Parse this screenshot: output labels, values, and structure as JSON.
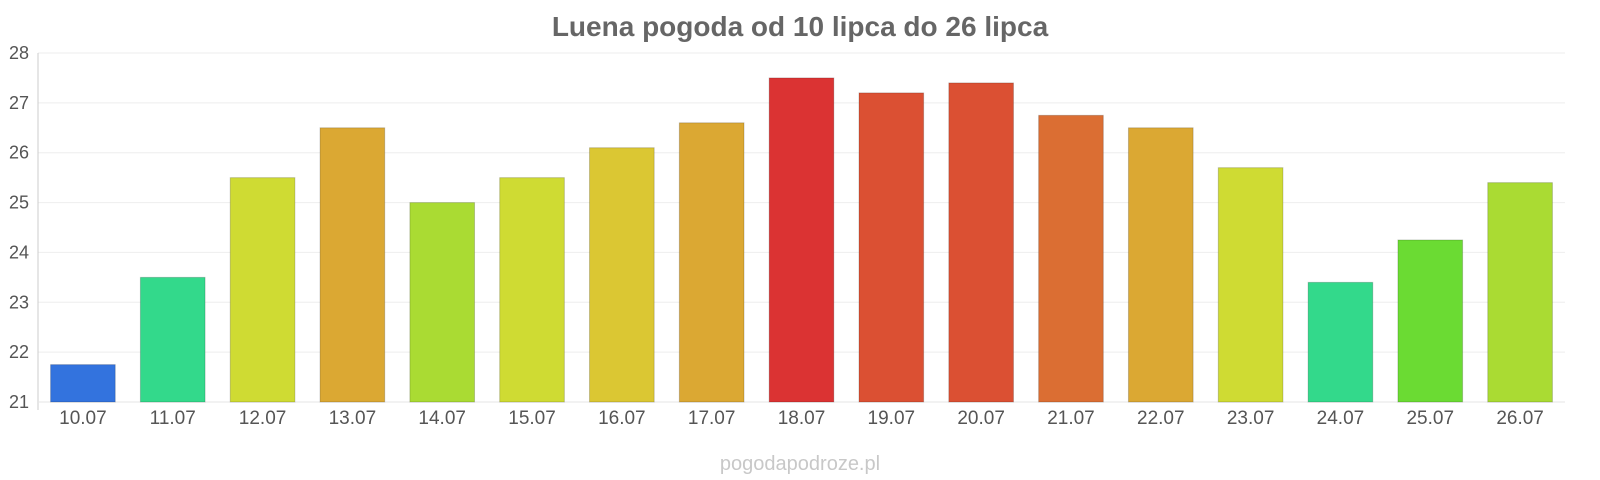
{
  "chart_data": {
    "type": "bar",
    "title": "Luena pogoda od 10 lipca do 26 lipca",
    "xlabel": "",
    "ylabel": "",
    "ylim": [
      21,
      28
    ],
    "yticks": [
      21,
      22,
      23,
      24,
      25,
      26,
      27,
      28
    ],
    "grid": true,
    "legend": "none",
    "categories": [
      "10.07",
      "11.07",
      "12.07",
      "13.07",
      "14.07",
      "15.07",
      "16.07",
      "17.07",
      "18.07",
      "19.07",
      "20.07",
      "21.07",
      "22.07",
      "23.07",
      "24.07",
      "25.07",
      "26.07"
    ],
    "values": [
      21.75,
      23.5,
      25.5,
      26.5,
      25.0,
      25.5,
      26.1,
      26.6,
      27.5,
      27.2,
      27.4,
      26.75,
      26.5,
      25.7,
      23.4,
      24.25,
      25.4
    ],
    "colors": [
      "#3373de",
      "#33d98b",
      "#cfdb33",
      "#dba833",
      "#aadb33",
      "#cfdb33",
      "#dbc733",
      "#dba833",
      "#db3333",
      "#db5033",
      "#db5033",
      "#db6e33",
      "#dba833",
      "#cfdb33",
      "#33d98b",
      "#6bdb33",
      "#aadb33"
    ]
  },
  "watermark": "pogodapodroze.pl"
}
